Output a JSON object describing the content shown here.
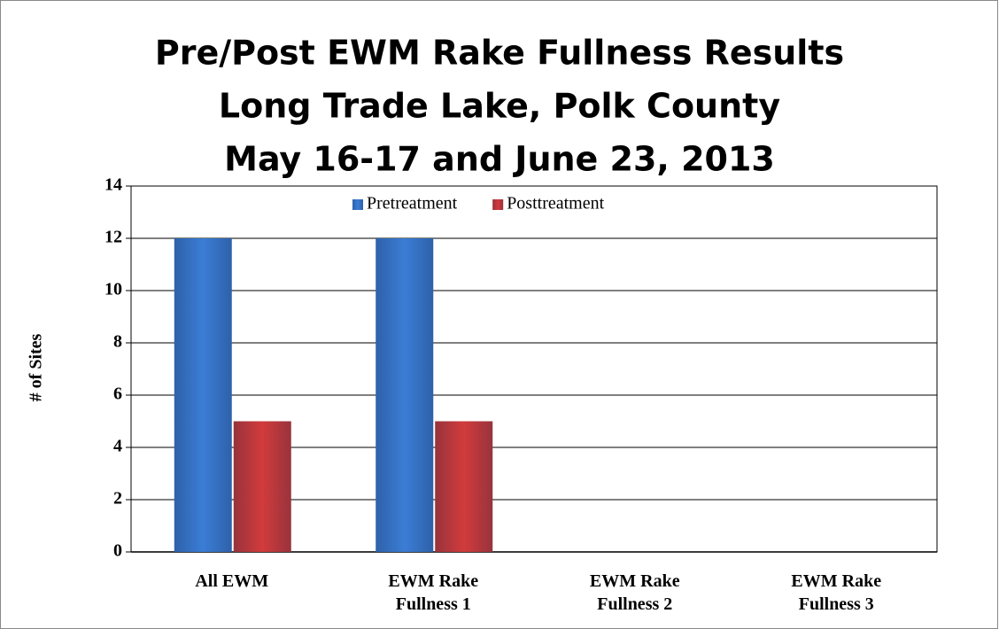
{
  "chart_data": {
    "type": "bar",
    "title": [
      "Pre/Post EWM Rake Fullness Results",
      "Long Trade Lake, Polk County",
      "May 16-17 and June 23, 2013"
    ],
    "ylabel": "# of Sites",
    "categories": [
      "All EWM",
      "EWM Rake Fullness 1",
      "EWM Rake Fullness 2",
      "EWM Rake Fullness 3"
    ],
    "series": [
      {
        "name": "Pretreatment",
        "color": "#3b7dd6",
        "values": [
          12,
          12,
          0,
          0
        ]
      },
      {
        "name": "Posttreatment",
        "color": "#d23b3b",
        "values": [
          5,
          5,
          0,
          0
        ]
      }
    ],
    "ylim": [
      0,
      14
    ],
    "yticks": [
      0,
      2,
      4,
      6,
      8,
      10,
      12,
      14
    ],
    "grid": true,
    "legend": "top"
  }
}
